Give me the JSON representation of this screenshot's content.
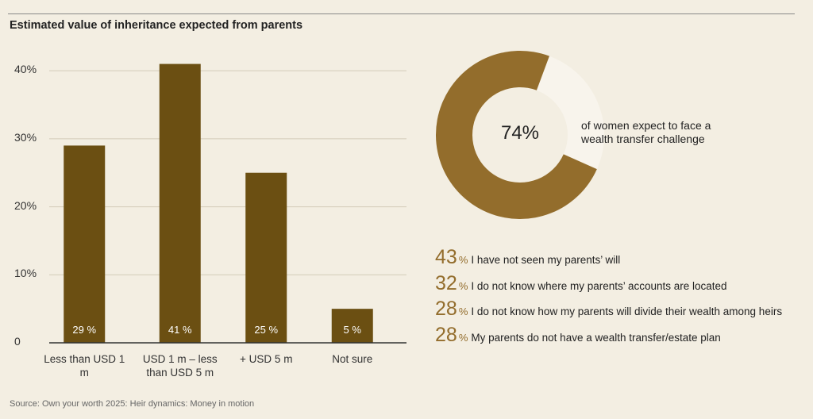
{
  "title": "Estimated value of inheritance expected from parents",
  "chart_data": [
    {
      "type": "bar",
      "categories": [
        "Less than USD 1 m",
        "USD 1 m – less than USD 5 m",
        "+ USD 5 m",
        "Not sure"
      ],
      "values": [
        29,
        41,
        25,
        5
      ],
      "value_labels": [
        "29 %",
        "41 %",
        "25 %",
        "5 %"
      ],
      "color": "#6b4f12",
      "ylim": [
        0,
        42
      ],
      "yticks": [
        0,
        {
          "value": 10,
          "label": "10%"
        },
        {
          "value": 20,
          "label": "20%"
        },
        {
          "value": 30,
          "label": "30%"
        },
        {
          "value": 40,
          "label": "40%"
        }
      ],
      "grid": true
    },
    {
      "type": "donut",
      "value": 74,
      "value_label": "74%",
      "caption": "of women expect to face a wealth transfer challenge",
      "color": "#936d2c",
      "track_color": "#f8f4ec"
    }
  ],
  "stats": [
    {
      "value": 43,
      "unit": "%",
      "text": "I have not seen my parents’ will"
    },
    {
      "value": 32,
      "unit": "%",
      "text": "I do not know where my parents’ accounts are located"
    },
    {
      "value": 28,
      "unit": "%",
      "text": "I do not know how my parents will divide their wealth among heirs"
    },
    {
      "value": 28,
      "unit": "%",
      "text": "My parents do not have a wealth transfer/estate plan"
    }
  ],
  "source": "Source: Own your worth 2025: Heir dynamics: Money in motion"
}
